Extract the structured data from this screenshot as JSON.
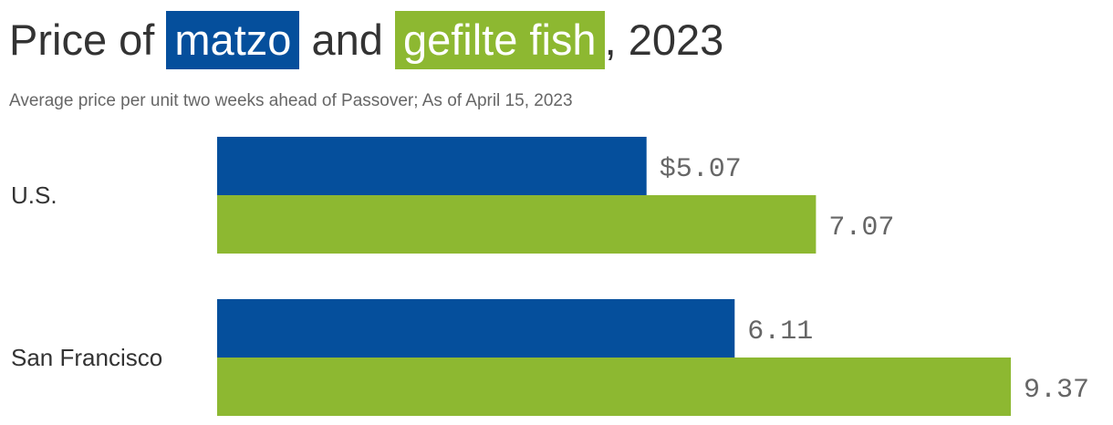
{
  "title": {
    "prefix": "Price of",
    "series_a": "matzo",
    "middle": "and",
    "series_b": "gefilte fish",
    "suffix": ", 2023"
  },
  "subtitle": "Average price per unit two weeks ahead of Passover; As of April 15, 2023",
  "chart_data": {
    "type": "bar",
    "orientation": "horizontal",
    "title": "Price of matzo and gefilte fish, 2023",
    "subtitle": "Average price per unit two weeks ahead of Passover; As of April 15, 2023",
    "categories": [
      "U.S.",
      "San Francisco"
    ],
    "series": [
      {
        "name": "matzo",
        "color": "#054f9c",
        "values": [
          5.07,
          6.11
        ],
        "labels": [
          "$5.07",
          "6.11"
        ]
      },
      {
        "name": "gefilte fish",
        "color": "#8db831",
        "values": [
          7.07,
          9.37
        ],
        "labels": [
          "7.07",
          "9.37"
        ]
      }
    ],
    "xlim": [
      0,
      9.37
    ],
    "grid": false,
    "legend": "title"
  }
}
